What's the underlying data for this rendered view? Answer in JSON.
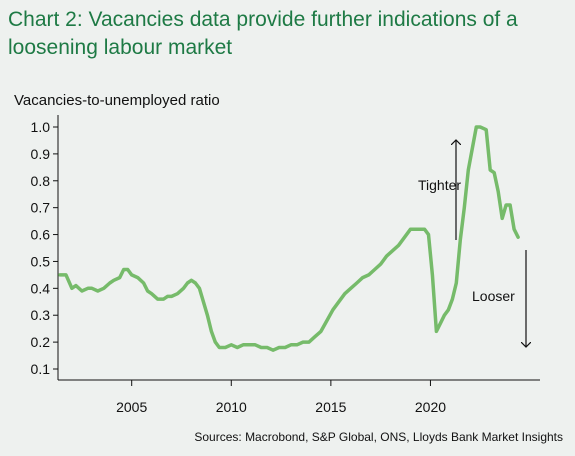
{
  "chart_data": {
    "type": "line",
    "title": "Chart 2: Vacancies data provide further indications of a loosening labour market",
    "ylabel": "Vacancies-to-unemployed ratio",
    "xlabel": "",
    "source": "Sources: Macrobond, S&P Global, ONS, Lloyds Bank Market Insights",
    "ylim": [
      0.1,
      1.0
    ],
    "yticks": [
      "0.1",
      "0.2",
      "0.3",
      "0.4",
      "0.5",
      "0.6",
      "0.7",
      "0.8",
      "0.9",
      "1.0"
    ],
    "xlim": [
      2001.3,
      2025.5
    ],
    "xticks": [
      "2005",
      "2010",
      "2015",
      "2020"
    ],
    "grid": false,
    "series_color": "#76bb6a",
    "series": [
      {
        "x": [
          2001.4,
          2001.7,
          2002.0,
          2002.2,
          2002.5,
          2002.8,
          2003.0,
          2003.3,
          2003.6,
          2003.9,
          2004.1,
          2004.4,
          2004.6,
          2004.8,
          2005.0,
          2005.3,
          2005.6,
          2005.8,
          2006.0,
          2006.3,
          2006.6,
          2006.8,
          2007.0,
          2007.3,
          2007.6,
          2007.8,
          2008.0,
          2008.2,
          2008.4,
          2008.6,
          2008.8,
          2009.0,
          2009.2,
          2009.4,
          2009.7,
          2010.0,
          2010.3,
          2010.6,
          2010.9,
          2011.2,
          2011.5,
          2011.8,
          2012.1,
          2012.4,
          2012.7,
          2013.0,
          2013.3,
          2013.6,
          2013.9,
          2014.2,
          2014.5,
          2014.8,
          2015.1,
          2015.4,
          2015.7,
          2016.0,
          2016.3,
          2016.6,
          2016.9,
          2017.2,
          2017.5,
          2017.8,
          2018.1,
          2018.4,
          2018.7,
          2019.0,
          2019.3,
          2019.5,
          2019.7,
          2019.9,
          2020.1,
          2020.3,
          2020.5,
          2020.7,
          2020.9,
          2021.1,
          2021.3,
          2021.5,
          2021.7,
          2021.9,
          2022.1,
          2022.3,
          2022.5,
          2022.8,
          2023.0,
          2023.2,
          2023.4,
          2023.6,
          2023.8,
          2024.0,
          2024.2,
          2024.4
        ],
        "y": [
          0.45,
          0.45,
          0.4,
          0.41,
          0.39,
          0.4,
          0.4,
          0.39,
          0.4,
          0.42,
          0.43,
          0.44,
          0.47,
          0.47,
          0.45,
          0.44,
          0.42,
          0.39,
          0.38,
          0.36,
          0.36,
          0.37,
          0.37,
          0.38,
          0.4,
          0.42,
          0.43,
          0.42,
          0.4,
          0.35,
          0.3,
          0.24,
          0.2,
          0.18,
          0.18,
          0.19,
          0.18,
          0.19,
          0.19,
          0.19,
          0.18,
          0.18,
          0.17,
          0.18,
          0.18,
          0.19,
          0.19,
          0.2,
          0.2,
          0.22,
          0.24,
          0.28,
          0.32,
          0.35,
          0.38,
          0.4,
          0.42,
          0.44,
          0.45,
          0.47,
          0.49,
          0.52,
          0.54,
          0.56,
          0.59,
          0.62,
          0.62,
          0.62,
          0.62,
          0.6,
          0.45,
          0.24,
          0.27,
          0.3,
          0.32,
          0.36,
          0.42,
          0.58,
          0.7,
          0.84,
          0.92,
          1.0,
          1.0,
          0.99,
          0.84,
          0.83,
          0.76,
          0.66,
          0.71,
          0.71,
          0.62,
          0.59
        ]
      }
    ],
    "annotations": [
      {
        "text": "Tighter",
        "arrow": "up"
      },
      {
        "text": "Looser",
        "arrow": "down"
      }
    ]
  }
}
